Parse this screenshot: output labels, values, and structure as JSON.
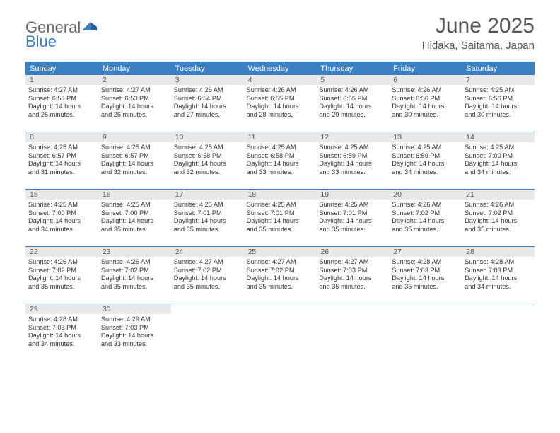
{
  "logo": {
    "general": "General",
    "blue": "Blue"
  },
  "title": "June 2025",
  "location": "Hidaka, Saitama, Japan",
  "header_bg": "#3b7fc4",
  "dow": [
    "Sunday",
    "Monday",
    "Tuesday",
    "Wednesday",
    "Thursday",
    "Friday",
    "Saturday"
  ],
  "weeks": [
    [
      {
        "n": "1",
        "sr": "Sunrise: 4:27 AM",
        "ss": "Sunset: 6:53 PM",
        "d1": "Daylight: 14 hours",
        "d2": "and 25 minutes."
      },
      {
        "n": "2",
        "sr": "Sunrise: 4:27 AM",
        "ss": "Sunset: 6:53 PM",
        "d1": "Daylight: 14 hours",
        "d2": "and 26 minutes."
      },
      {
        "n": "3",
        "sr": "Sunrise: 4:26 AM",
        "ss": "Sunset: 6:54 PM",
        "d1": "Daylight: 14 hours",
        "d2": "and 27 minutes."
      },
      {
        "n": "4",
        "sr": "Sunrise: 4:26 AM",
        "ss": "Sunset: 6:55 PM",
        "d1": "Daylight: 14 hours",
        "d2": "and 28 minutes."
      },
      {
        "n": "5",
        "sr": "Sunrise: 4:26 AM",
        "ss": "Sunset: 6:55 PM",
        "d1": "Daylight: 14 hours",
        "d2": "and 29 minutes."
      },
      {
        "n": "6",
        "sr": "Sunrise: 4:26 AM",
        "ss": "Sunset: 6:56 PM",
        "d1": "Daylight: 14 hours",
        "d2": "and 30 minutes."
      },
      {
        "n": "7",
        "sr": "Sunrise: 4:25 AM",
        "ss": "Sunset: 6:56 PM",
        "d1": "Daylight: 14 hours",
        "d2": "and 30 minutes."
      }
    ],
    [
      {
        "n": "8",
        "sr": "Sunrise: 4:25 AM",
        "ss": "Sunset: 6:57 PM",
        "d1": "Daylight: 14 hours",
        "d2": "and 31 minutes."
      },
      {
        "n": "9",
        "sr": "Sunrise: 4:25 AM",
        "ss": "Sunset: 6:57 PM",
        "d1": "Daylight: 14 hours",
        "d2": "and 32 minutes."
      },
      {
        "n": "10",
        "sr": "Sunrise: 4:25 AM",
        "ss": "Sunset: 6:58 PM",
        "d1": "Daylight: 14 hours",
        "d2": "and 32 minutes."
      },
      {
        "n": "11",
        "sr": "Sunrise: 4:25 AM",
        "ss": "Sunset: 6:58 PM",
        "d1": "Daylight: 14 hours",
        "d2": "and 33 minutes."
      },
      {
        "n": "12",
        "sr": "Sunrise: 4:25 AM",
        "ss": "Sunset: 6:59 PM",
        "d1": "Daylight: 14 hours",
        "d2": "and 33 minutes."
      },
      {
        "n": "13",
        "sr": "Sunrise: 4:25 AM",
        "ss": "Sunset: 6:59 PM",
        "d1": "Daylight: 14 hours",
        "d2": "and 34 minutes."
      },
      {
        "n": "14",
        "sr": "Sunrise: 4:25 AM",
        "ss": "Sunset: 7:00 PM",
        "d1": "Daylight: 14 hours",
        "d2": "and 34 minutes."
      }
    ],
    [
      {
        "n": "15",
        "sr": "Sunrise: 4:25 AM",
        "ss": "Sunset: 7:00 PM",
        "d1": "Daylight: 14 hours",
        "d2": "and 34 minutes."
      },
      {
        "n": "16",
        "sr": "Sunrise: 4:25 AM",
        "ss": "Sunset: 7:00 PM",
        "d1": "Daylight: 14 hours",
        "d2": "and 35 minutes."
      },
      {
        "n": "17",
        "sr": "Sunrise: 4:25 AM",
        "ss": "Sunset: 7:01 PM",
        "d1": "Daylight: 14 hours",
        "d2": "and 35 minutes."
      },
      {
        "n": "18",
        "sr": "Sunrise: 4:25 AM",
        "ss": "Sunset: 7:01 PM",
        "d1": "Daylight: 14 hours",
        "d2": "and 35 minutes."
      },
      {
        "n": "19",
        "sr": "Sunrise: 4:25 AM",
        "ss": "Sunset: 7:01 PM",
        "d1": "Daylight: 14 hours",
        "d2": "and 35 minutes."
      },
      {
        "n": "20",
        "sr": "Sunrise: 4:26 AM",
        "ss": "Sunset: 7:02 PM",
        "d1": "Daylight: 14 hours",
        "d2": "and 35 minutes."
      },
      {
        "n": "21",
        "sr": "Sunrise: 4:26 AM",
        "ss": "Sunset: 7:02 PM",
        "d1": "Daylight: 14 hours",
        "d2": "and 35 minutes."
      }
    ],
    [
      {
        "n": "22",
        "sr": "Sunrise: 4:26 AM",
        "ss": "Sunset: 7:02 PM",
        "d1": "Daylight: 14 hours",
        "d2": "and 35 minutes."
      },
      {
        "n": "23",
        "sr": "Sunrise: 4:26 AM",
        "ss": "Sunset: 7:02 PM",
        "d1": "Daylight: 14 hours",
        "d2": "and 35 minutes."
      },
      {
        "n": "24",
        "sr": "Sunrise: 4:27 AM",
        "ss": "Sunset: 7:02 PM",
        "d1": "Daylight: 14 hours",
        "d2": "and 35 minutes."
      },
      {
        "n": "25",
        "sr": "Sunrise: 4:27 AM",
        "ss": "Sunset: 7:02 PM",
        "d1": "Daylight: 14 hours",
        "d2": "and 35 minutes."
      },
      {
        "n": "26",
        "sr": "Sunrise: 4:27 AM",
        "ss": "Sunset: 7:03 PM",
        "d1": "Daylight: 14 hours",
        "d2": "and 35 minutes."
      },
      {
        "n": "27",
        "sr": "Sunrise: 4:28 AM",
        "ss": "Sunset: 7:03 PM",
        "d1": "Daylight: 14 hours",
        "d2": "and 35 minutes."
      },
      {
        "n": "28",
        "sr": "Sunrise: 4:28 AM",
        "ss": "Sunset: 7:03 PM",
        "d1": "Daylight: 14 hours",
        "d2": "and 34 minutes."
      }
    ],
    [
      {
        "n": "29",
        "sr": "Sunrise: 4:28 AM",
        "ss": "Sunset: 7:03 PM",
        "d1": "Daylight: 14 hours",
        "d2": "and 34 minutes."
      },
      {
        "n": "30",
        "sr": "Sunrise: 4:29 AM",
        "ss": "Sunset: 7:03 PM",
        "d1": "Daylight: 14 hours",
        "d2": "and 33 minutes."
      },
      null,
      null,
      null,
      null,
      null
    ]
  ]
}
